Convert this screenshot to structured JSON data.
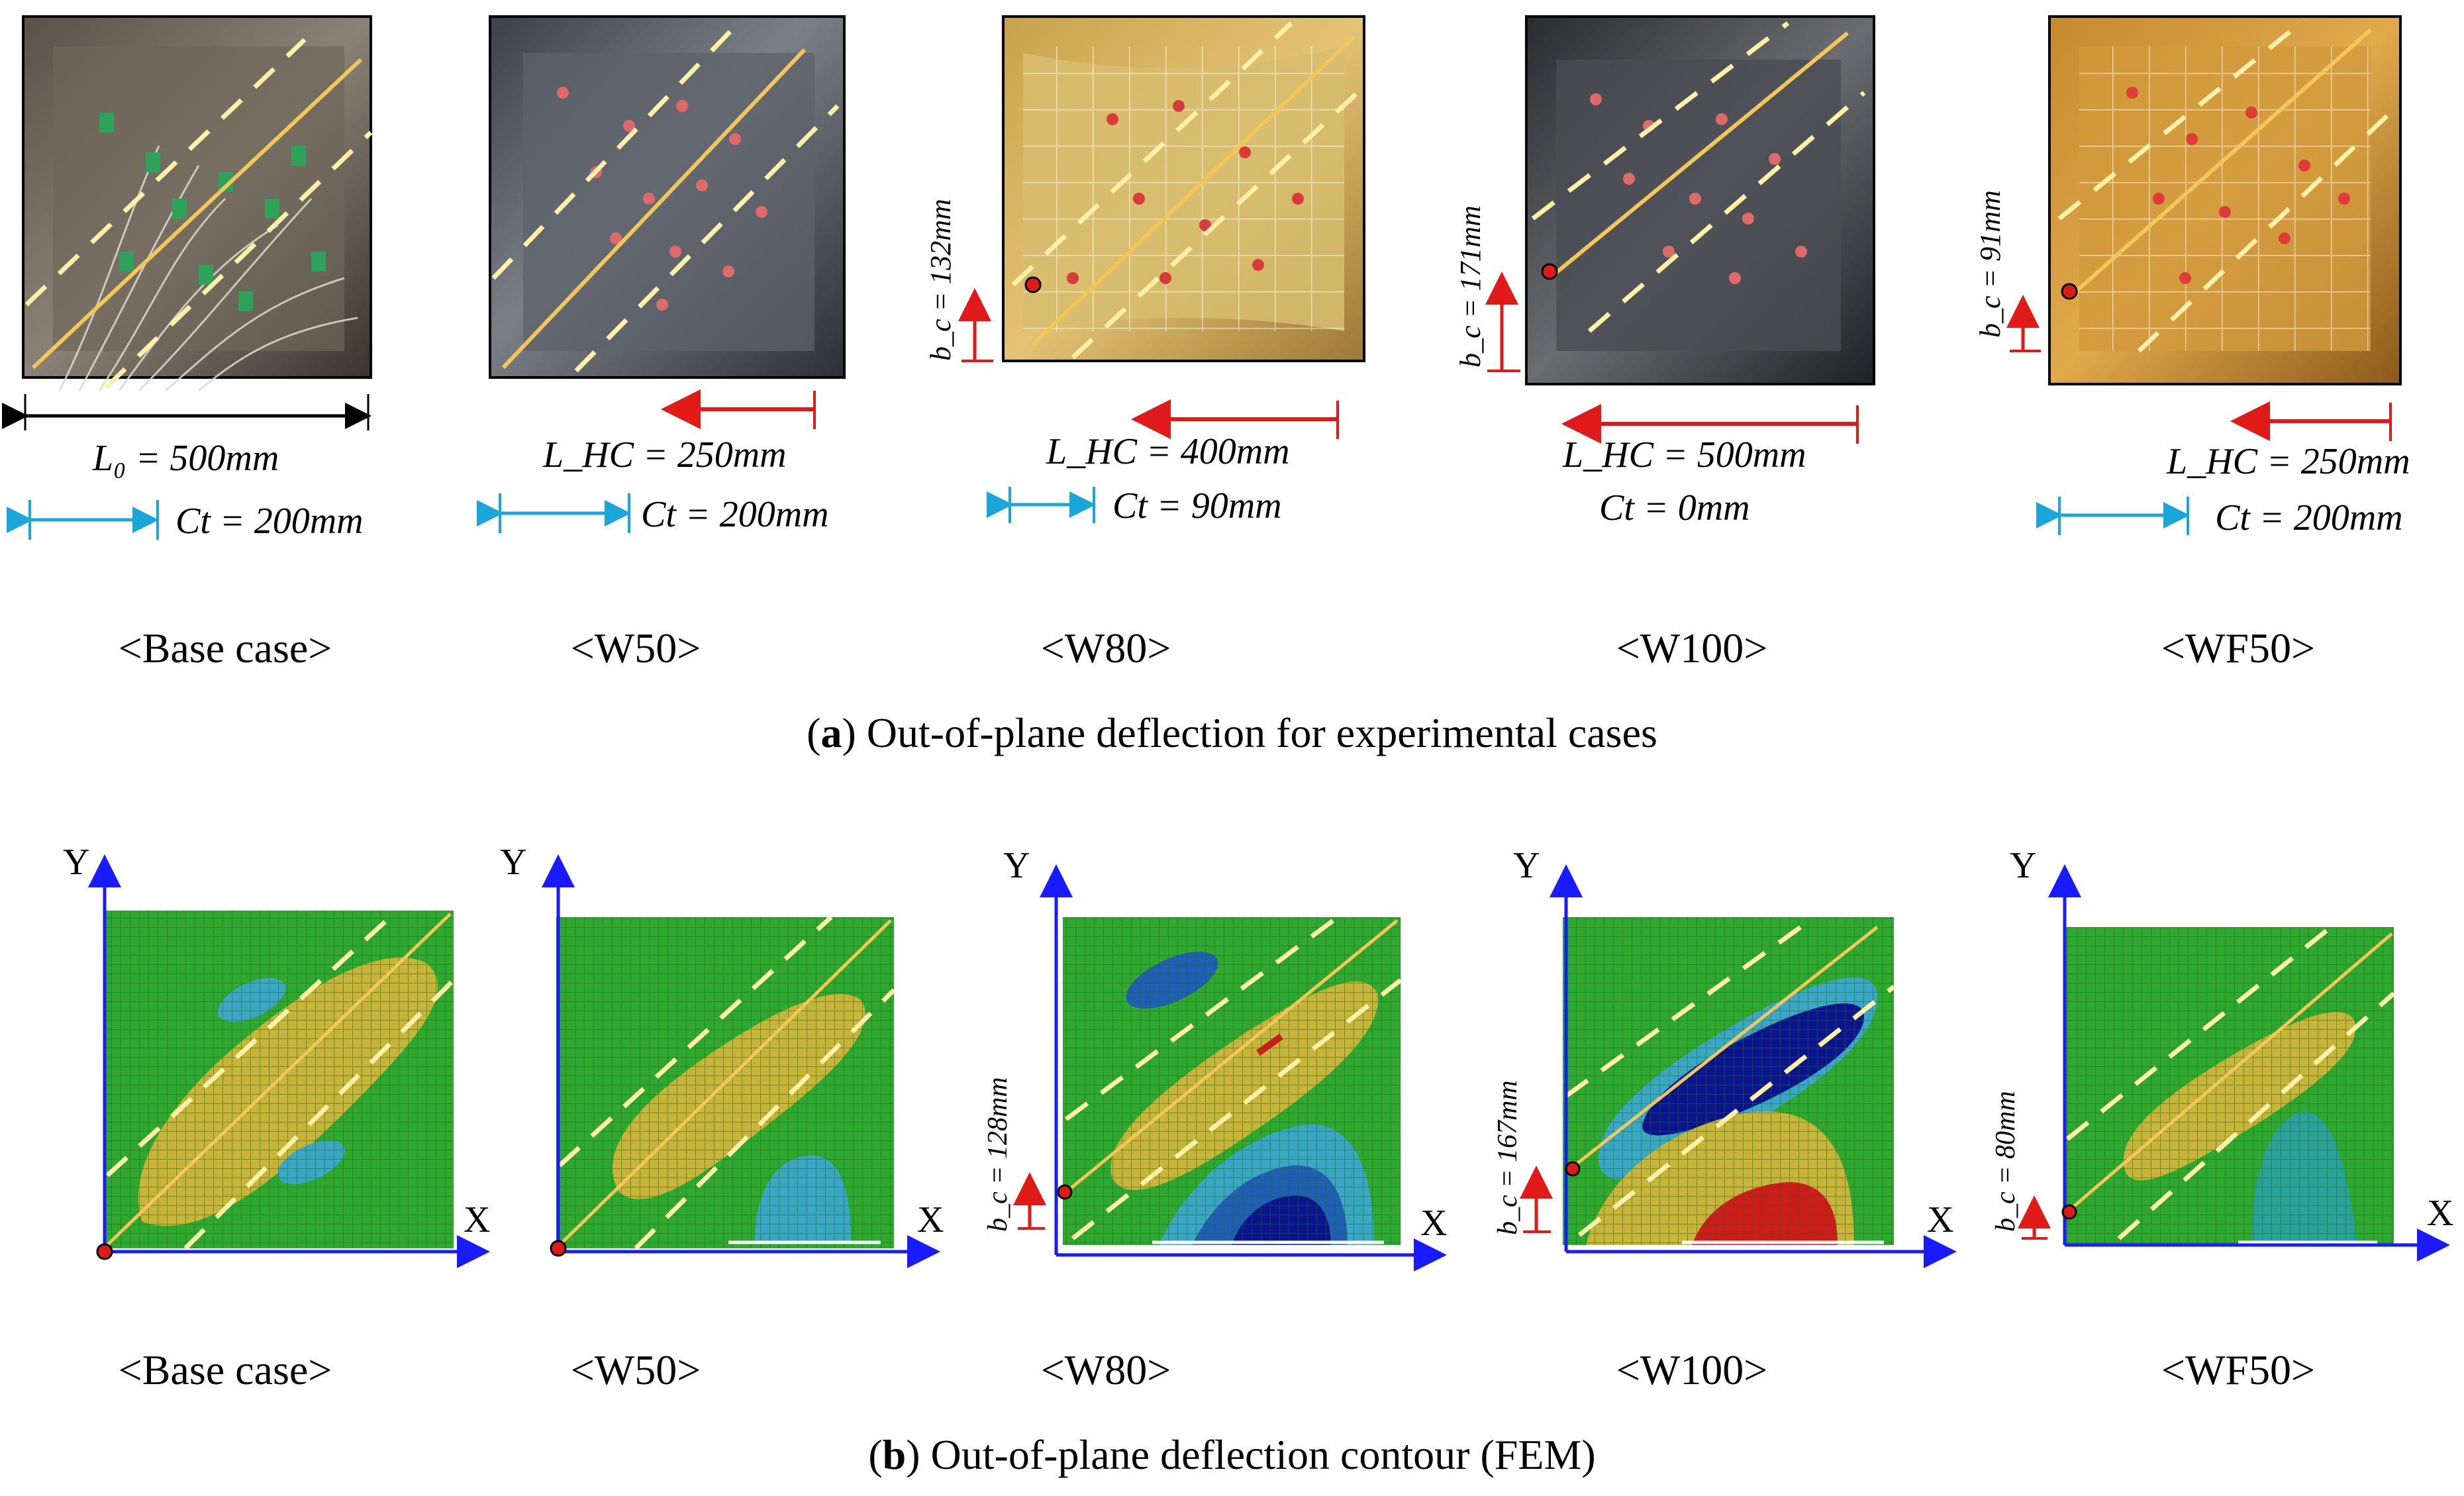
{
  "figure": {
    "experimental": {
      "caption_letter": "a",
      "caption_text": ") Out-of-plane deflection for experimental cases",
      "panels": [
        {
          "label": "<Base case>",
          "length_label": "L₀ = 500mm",
          "ct_label": "Ct = 200mm",
          "bc_label": ""
        },
        {
          "label": "<W50>",
          "length_label": "L_HC = 250mm",
          "ct_label": "Ct = 200mm",
          "bc_label": ""
        },
        {
          "label": "<W80>",
          "length_label": "L_HC = 400mm",
          "ct_label": "Ct = 90mm",
          "bc_label": "b_c = 132mm"
        },
        {
          "label": "<W100>",
          "length_label": "L_HC = 500mm",
          "ct_label": "Ct = 0mm",
          "bc_label": "b_c = 171mm"
        },
        {
          "label": "<WF50>",
          "length_label": "L_HC = 250mm",
          "ct_label": "Ct = 200mm",
          "bc_label": "b_c = 91mm"
        }
      ]
    },
    "fem": {
      "caption_letter": "b",
      "caption_text": ") Out-of-plane deflection contour (FEM)",
      "axis_x": "X",
      "axis_y": "Y",
      "panels": [
        {
          "label": "<Base case>",
          "bc_label": ""
        },
        {
          "label": "<W50>",
          "bc_label": ""
        },
        {
          "label": "<W80>",
          "bc_label": "b_c = 128mm"
        },
        {
          "label": "<W100>",
          "bc_label": "b_c = 167mm"
        },
        {
          "label": "<WF50>",
          "bc_label": "b_c = 80mm"
        }
      ]
    },
    "colors": {
      "green": "#2fa82f",
      "yellow": "#c8b438",
      "cyan": "#3aa7c6",
      "blue": "#1f5fb5",
      "navy": "#0c138f",
      "red": "#d21a1a",
      "axis": "#1a1aff",
      "dash": "#ffe98a"
    }
  }
}
